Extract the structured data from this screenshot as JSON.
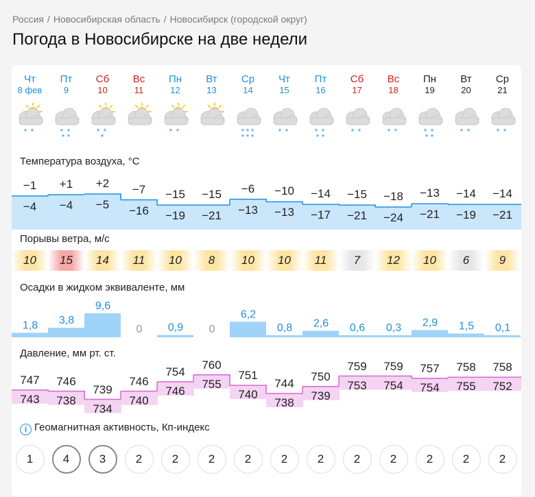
{
  "breadcrumb": [
    "Россия",
    "Новосибирская область",
    "Новосибирск (городской округ)"
  ],
  "title": "Погода в Новосибирске на две недели",
  "days": [
    {
      "name": "Чт",
      "date": "8 фев",
      "color": "blue",
      "icon": "sun-cloud-snow-icon"
    },
    {
      "name": "Пт",
      "date": "9",
      "color": "blue",
      "icon": "cloud-snow-icon"
    },
    {
      "name": "Сб",
      "date": "10",
      "color": "red",
      "icon": "sun-cloud-snow-icon"
    },
    {
      "name": "Вс",
      "date": "11",
      "color": "red",
      "icon": "sun-cloud-icon"
    },
    {
      "name": "Пн",
      "date": "12",
      "color": "blue",
      "icon": "sun-cloud-snow-icon"
    },
    {
      "name": "Вт",
      "date": "13",
      "color": "blue",
      "icon": "sun-cloud-icon"
    },
    {
      "name": "Ср",
      "date": "14",
      "color": "blue",
      "icon": "cloud-heavy-snow-icon"
    },
    {
      "name": "Чт",
      "date": "15",
      "color": "blue",
      "icon": "cloud-snow-icon"
    },
    {
      "name": "Пт",
      "date": "16",
      "color": "blue",
      "icon": "cloud-snow-icon"
    },
    {
      "name": "Сб",
      "date": "17",
      "color": "red",
      "icon": "cloud-snow-icon"
    },
    {
      "name": "Вс",
      "date": "18",
      "color": "red",
      "icon": "cloud-snow-icon"
    },
    {
      "name": "Пн",
      "date": "19",
      "color": "black",
      "icon": "cloud-snow-icon"
    },
    {
      "name": "Вт",
      "date": "20",
      "color": "black",
      "icon": "cloud-snow-icon"
    },
    {
      "name": "Ср",
      "date": "21",
      "color": "black",
      "icon": "cloud-snow-icon"
    }
  ],
  "temperature": {
    "title": "Температура воздуха, °C",
    "max": [
      "−1",
      "+1",
      "+2",
      "−7",
      "−15",
      "−15",
      "−6",
      "−10",
      "−14",
      "−15",
      "−18",
      "−13",
      "−14",
      "−14"
    ],
    "min": [
      "−4",
      "−4",
      "−5",
      "−16",
      "−19",
      "−21",
      "−13",
      "−13",
      "−17",
      "−21",
      "−24",
      "−21",
      "−19",
      "−21"
    ],
    "max_values": [
      -1,
      1,
      2,
      -7,
      -15,
      -15,
      -6,
      -10,
      -14,
      -15,
      -18,
      -13,
      -14,
      -14
    ]
  },
  "wind": {
    "title": "Порывы ветра, м/с",
    "values": [
      "10",
      "15",
      "14",
      "11",
      "10",
      "8",
      "10",
      "10",
      "11",
      "7",
      "12",
      "10",
      "6",
      "9"
    ],
    "levels": [
      "med",
      "high",
      "med",
      "med",
      "med",
      "med",
      "med",
      "med",
      "med",
      "low",
      "med",
      "med",
      "low",
      "med"
    ],
    "colors": {
      "low": "#e6e6e6",
      "med": "#fde5a6",
      "high": "#f7a7a7"
    }
  },
  "precip": {
    "title": "Осадки в жидком эквиваленте, мм",
    "labels": [
      "1,8",
      "3,8",
      "9,6",
      "0",
      "0,9",
      "0",
      "6,2",
      "0,8",
      "2,6",
      "0,6",
      "0,3",
      "2,9",
      "1,5",
      "0,1"
    ],
    "values": [
      1.8,
      3.8,
      9.6,
      0,
      0.9,
      0,
      6.2,
      0.8,
      2.6,
      0.6,
      0.3,
      2.9,
      1.5,
      0.1
    ]
  },
  "pressure": {
    "title": "Давление, мм рт. ст.",
    "max": [
      "747",
      "746",
      "739",
      "746",
      "754",
      "760",
      "751",
      "744",
      "750",
      "759",
      "759",
      "757",
      "758",
      "758"
    ],
    "min": [
      "743",
      "738",
      "734",
      "740",
      "746",
      "755",
      "740",
      "738",
      "739",
      "753",
      "754",
      "754",
      "755",
      "752"
    ],
    "max_values": [
      747,
      746,
      739,
      746,
      754,
      760,
      751,
      744,
      750,
      759,
      759,
      757,
      758,
      758
    ]
  },
  "geomagnetic": {
    "title": "Геомагнитная активность, Кп-индекс",
    "values": [
      "1",
      "4",
      "3",
      "2",
      "2",
      "2",
      "2",
      "2",
      "2",
      "2",
      "2",
      "2",
      "2",
      "2"
    ]
  },
  "colors": {
    "blue": "#1e8fe0",
    "red": "#d71d1d",
    "temp_fill": "#c9e6fb",
    "precip_fill": "#9fd3f7",
    "pressure_fill": "#f5d3f3"
  }
}
